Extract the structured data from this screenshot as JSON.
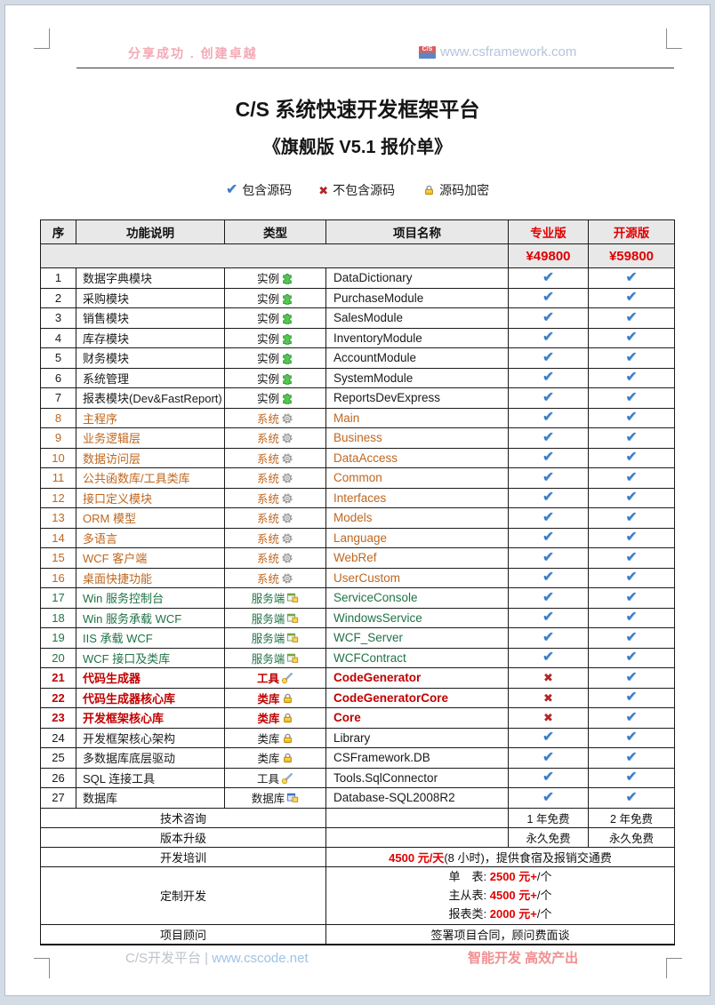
{
  "header": {
    "slogan": "分享成功 . 创建卓越",
    "logo_text": "C/S",
    "site_url": "www.csframework.com"
  },
  "title": "C/S 系统快速开发框架平台",
  "subtitle": "《旗舰版 V5.1 报价单》",
  "legend": {
    "items": [
      {
        "icon": "check-icon",
        "label": "包含源码"
      },
      {
        "icon": "cross-icon",
        "label": "不包含源码"
      },
      {
        "icon": "lock-icon",
        "label": "源码加密"
      }
    ]
  },
  "table": {
    "headers": [
      "序",
      "功能说明",
      "类型",
      "项目名称",
      "专业版",
      "开源版"
    ],
    "price_row": {
      "pro": "¥49800",
      "open": "¥59800"
    },
    "rows": [
      {
        "no": "1",
        "desc": "数据字典模块",
        "type": "实例",
        "icon": "puzzle-icon",
        "name": "DataDictionary",
        "pro": "check",
        "open": "check",
        "variant": "black"
      },
      {
        "no": "2",
        "desc": "采购模块",
        "type": "实例",
        "icon": "puzzle-icon",
        "name": "PurchaseModule",
        "pro": "check",
        "open": "check",
        "variant": "black"
      },
      {
        "no": "3",
        "desc": "销售模块",
        "type": "实例",
        "icon": "puzzle-icon",
        "name": "SalesModule",
        "pro": "check",
        "open": "check",
        "variant": "black"
      },
      {
        "no": "4",
        "desc": "库存模块",
        "type": "实例",
        "icon": "puzzle-icon",
        "name": "InventoryModule",
        "pro": "check",
        "open": "check",
        "variant": "black"
      },
      {
        "no": "5",
        "desc": "财务模块",
        "type": "实例",
        "icon": "puzzle-icon",
        "name": "AccountModule",
        "pro": "check",
        "open": "check",
        "variant": "black"
      },
      {
        "no": "6",
        "desc": "系统管理",
        "type": "实例",
        "icon": "puzzle-icon",
        "name": "SystemModule",
        "pro": "check",
        "open": "check",
        "variant": "black"
      },
      {
        "no": "7",
        "desc": "报表模块(Dev&FastReport)",
        "type": "实例",
        "icon": "puzzle-icon",
        "name": "ReportsDevExpress",
        "pro": "check",
        "open": "check",
        "variant": "black"
      },
      {
        "no": "8",
        "desc": "主程序",
        "type": "系统",
        "icon": "gear-icon",
        "name": "Main",
        "pro": "check",
        "open": "check",
        "variant": "orange"
      },
      {
        "no": "9",
        "desc": "业务逻辑层",
        "type": "系统",
        "icon": "gear-icon",
        "name": "Business",
        "pro": "check",
        "open": "check",
        "variant": "orange"
      },
      {
        "no": "10",
        "desc": "数据访问层",
        "type": "系统",
        "icon": "gear-icon",
        "name": "DataAccess",
        "pro": "check",
        "open": "check",
        "variant": "orange"
      },
      {
        "no": "11",
        "desc": "公共函数库/工具类库",
        "type": "系统",
        "icon": "gear-icon",
        "name": "Common",
        "pro": "check",
        "open": "check",
        "variant": "orange"
      },
      {
        "no": "12",
        "desc": "接口定义模块",
        "type": "系统",
        "icon": "gear-icon",
        "name": "Interfaces",
        "pro": "check",
        "open": "check",
        "variant": "orange"
      },
      {
        "no": "13",
        "desc": "ORM 模型",
        "type": "系统",
        "icon": "gear-icon",
        "name": "Models",
        "pro": "check",
        "open": "check",
        "variant": "orange"
      },
      {
        "no": "14",
        "desc": "多语言",
        "type": "系统",
        "icon": "gear-icon",
        "name": "Language",
        "pro": "check",
        "open": "check",
        "variant": "orange"
      },
      {
        "no": "15",
        "desc": "WCF 客户端",
        "type": "系统",
        "icon": "gear-icon",
        "name": "WebRef",
        "pro": "check",
        "open": "check",
        "variant": "orange"
      },
      {
        "no": "16",
        "desc": "桌面快捷功能",
        "type": "系统",
        "icon": "gear-icon",
        "name": "UserCustom",
        "pro": "check",
        "open": "check",
        "variant": "orange"
      },
      {
        "no": "17",
        "desc": "Win 服务控制台",
        "type": "服务端",
        "icon": "server-icon",
        "name": "ServiceConsole",
        "pro": "check",
        "open": "check",
        "variant": "green"
      },
      {
        "no": "18",
        "desc": "Win 服务承载 WCF",
        "type": "服务端",
        "icon": "server-icon",
        "name": "WindowsService",
        "pro": "check",
        "open": "check",
        "variant": "green"
      },
      {
        "no": "19",
        "desc": "IIS 承载 WCF",
        "type": "服务端",
        "icon": "server-icon",
        "name": "WCF_Server",
        "pro": "check",
        "open": "check",
        "variant": "green"
      },
      {
        "no": "20",
        "desc": "WCF 接口及类库",
        "type": "服务端",
        "icon": "server-icon",
        "name": "WCFContract",
        "pro": "check",
        "open": "check",
        "variant": "green"
      },
      {
        "no": "21",
        "desc": "代码生成器",
        "type": "工具",
        "icon": "tool-icon",
        "name": "CodeGenerator",
        "pro": "cross",
        "open": "check",
        "variant": "red"
      },
      {
        "no": "22",
        "desc": "代码生成器核心库",
        "type": "类库",
        "icon": "lock-icon",
        "name": "CodeGeneratorCore",
        "pro": "cross",
        "open": "check",
        "variant": "red"
      },
      {
        "no": "23",
        "desc": "开发框架核心库",
        "type": "类库",
        "icon": "lock-icon",
        "name": "Core",
        "pro": "cross",
        "open": "check",
        "variant": "red"
      },
      {
        "no": "24",
        "desc": "开发框架核心架构",
        "type": "类库",
        "icon": "lock-icon",
        "name": "Library",
        "pro": "check",
        "open": "check",
        "variant": "black"
      },
      {
        "no": "25",
        "desc": "多数据库底层驱动",
        "type": "类库",
        "icon": "lock-icon",
        "name": "CSFramework.DB",
        "pro": "check",
        "open": "check",
        "variant": "black"
      },
      {
        "no": "26",
        "desc": "SQL 连接工具",
        "type": "工具",
        "icon": "tool-icon",
        "name": "Tools.SqlConnector",
        "pro": "check",
        "open": "check",
        "variant": "black"
      },
      {
        "no": "27",
        "desc": "数据库",
        "type": "数据库",
        "icon": "database-icon",
        "name": "Database-SQL2008R2",
        "pro": "check",
        "open": "check",
        "variant": "black"
      }
    ],
    "tail": [
      {
        "kind": "plans",
        "label": "技术咨询",
        "pro": "1 年免费",
        "open": "2 年免费"
      },
      {
        "kind": "plans",
        "label": "版本升级",
        "pro": "永久免费",
        "open": "永久免费"
      },
      {
        "kind": "merged",
        "label": "开发培训",
        "parts": [
          {
            "text": "4500 元/天",
            "red": true
          },
          {
            "text": "(8 小时)，提供食宿及报销交通费",
            "red": false
          }
        ]
      },
      {
        "kind": "lines",
        "label": "定制开发",
        "lines": [
          [
            {
              "text": "单　表: ",
              "red": false
            },
            {
              "text": "2500 元+",
              "red": true
            },
            {
              "text": "/个",
              "red": false
            }
          ],
          [
            {
              "text": "主从表: ",
              "red": false
            },
            {
              "text": "4500 元+",
              "red": true
            },
            {
              "text": "/个",
              "red": false
            }
          ],
          [
            {
              "text": "报表类: ",
              "red": false
            },
            {
              "text": "2000 元+",
              "red": true
            },
            {
              "text": "/个",
              "red": false
            }
          ]
        ]
      },
      {
        "kind": "merged",
        "label": "项目顾问",
        "parts": [
          {
            "text": "签署项目合同，顾问费面谈",
            "red": false
          }
        ]
      }
    ]
  },
  "page_footer": {
    "left_gray": "C/S开发平台",
    "separator": " | ",
    "left_blue": "www.cscode.net",
    "right": "智能开发 高效产出"
  },
  "colors": {
    "header_red": "#e00000",
    "check_blue": "#3a7cc7",
    "cross_red": "#b02626",
    "system_orange": "#bf671f",
    "server_green": "#217346",
    "core_red": "#c00000",
    "header_bg": "#e8e8e8",
    "slogan_pink": "#f3a9b4",
    "site_blue": "#b3c5dc"
  }
}
